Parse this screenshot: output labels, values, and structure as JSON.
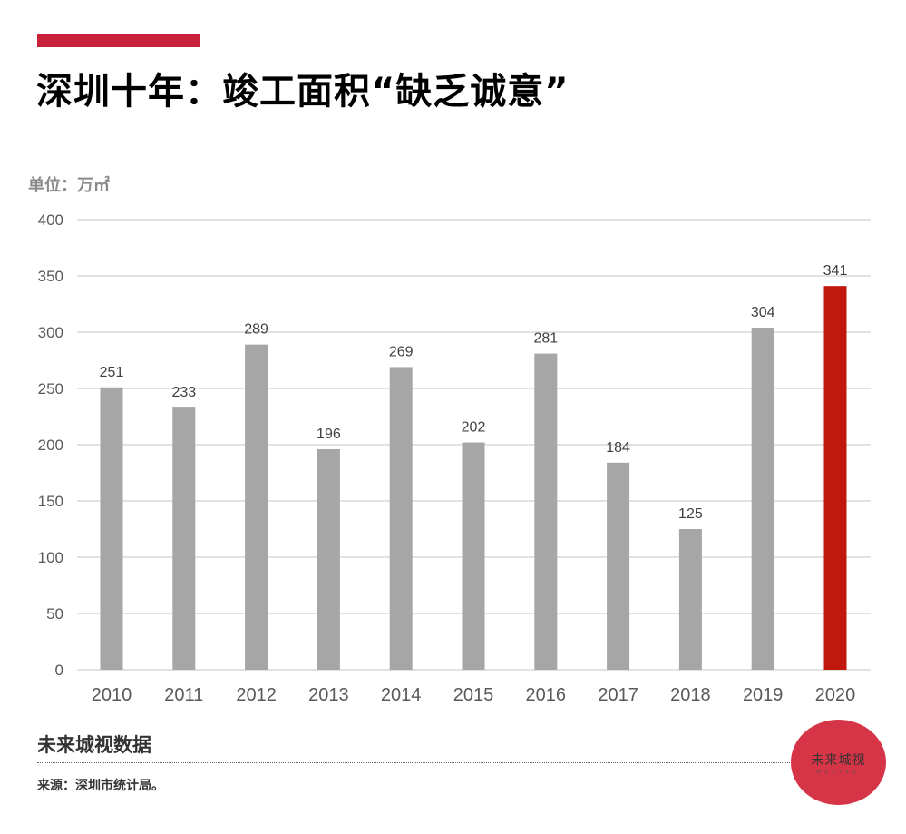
{
  "header": {
    "title": "深圳十年：竣工面积“缺乏诚意”"
  },
  "colors": {
    "accent": "#c9213a",
    "bar_default": "#a6a6a6",
    "bar_highlight": "#c0180c",
    "grid": "#d9d9d9"
  },
  "chart_data": {
    "type": "bar",
    "title": "深圳十年：竣工面积“缺乏诚意”",
    "unit_label": "单位：万㎡",
    "categories": [
      "2010",
      "2011",
      "2012",
      "2013",
      "2014",
      "2015",
      "2016",
      "2017",
      "2018",
      "2019",
      "2020"
    ],
    "values": [
      251,
      233,
      289,
      196,
      269,
      202,
      281,
      184,
      125,
      304,
      341
    ],
    "highlight": [
      "2020"
    ],
    "ylim": [
      0,
      400
    ],
    "yticks": [
      0,
      50,
      100,
      150,
      200,
      250,
      300,
      350,
      400
    ],
    "grid": true,
    "data_labels": true
  },
  "footer": {
    "source_name": "未来城视数据",
    "source": "来源：深圳市统计局。",
    "logo_text": "未来城视",
    "logo_sub": "WELIKE"
  }
}
